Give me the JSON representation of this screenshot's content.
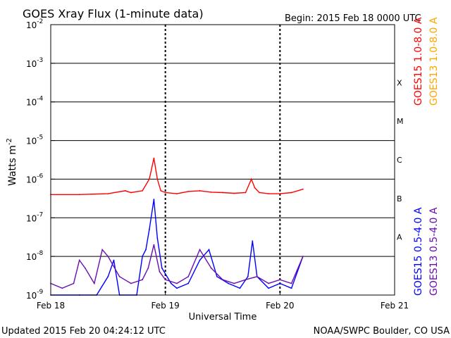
{
  "chart_data": {
    "type": "line",
    "title": "GOES Xray Flux (1-minute data)",
    "begin_label": "Begin:  2015 Feb 18 0000 UTC",
    "xlabel": "Universal Time",
    "ylabel_main": "Watts m",
    "ylabel_exp": "-2",
    "x_ticks": [
      "Feb 18",
      "Feb 19",
      "Feb 20",
      "Feb 21"
    ],
    "xlim_days": [
      0,
      3
    ],
    "y_scale": "log",
    "ylim": [
      1e-09,
      0.01
    ],
    "y_ticks": [
      {
        "mant": "10",
        "exp": "-9"
      },
      {
        "mant": "10",
        "exp": "-8"
      },
      {
        "mant": "10",
        "exp": "-7"
      },
      {
        "mant": "10",
        "exp": "-6"
      },
      {
        "mant": "10",
        "exp": "-5"
      },
      {
        "mant": "10",
        "exp": "-4"
      },
      {
        "mant": "10",
        "exp": "-3"
      },
      {
        "mant": "10",
        "exp": "-2"
      }
    ],
    "flare_classes": [
      "A",
      "B",
      "C",
      "M",
      "X"
    ],
    "grid": true,
    "legend_placement": "right",
    "series": [
      {
        "name": "GOES15 1.0-8.0 A",
        "color": "#ff0000",
        "x": [
          0,
          0.25,
          0.5,
          0.65,
          0.7,
          0.8,
          0.86,
          0.9,
          0.93,
          0.96,
          1.0,
          1.1,
          1.2,
          1.3,
          1.4,
          1.5,
          1.6,
          1.7,
          1.75,
          1.78,
          1.82,
          1.9,
          2.0,
          2.1,
          2.2
        ],
        "values": [
          4e-07,
          4e-07,
          4.2e-07,
          5e-07,
          4.5e-07,
          5e-07,
          1e-06,
          3.5e-06,
          1e-06,
          5e-07,
          4.5e-07,
          4.2e-07,
          4.8e-07,
          5e-07,
          4.6e-07,
          4.5e-07,
          4.3e-07,
          4.5e-07,
          1e-06,
          6e-07,
          4.5e-07,
          4.2e-07,
          4.2e-07,
          4.5e-07,
          5.5e-07
        ]
      },
      {
        "name": "GOES13 1.0-8.0 A",
        "color": "#ffa500",
        "x": [],
        "values": []
      },
      {
        "name": "GOES15 0.5-4.0 A",
        "color": "#0000ff",
        "x": [
          0,
          0.25,
          0.4,
          0.5,
          0.55,
          0.6,
          0.75,
          0.8,
          0.83,
          0.86,
          0.9,
          0.93,
          0.97,
          1.05,
          1.1,
          1.2,
          1.3,
          1.38,
          1.45,
          1.55,
          1.65,
          1.72,
          1.76,
          1.8,
          1.9,
          2.0,
          2.1,
          2.2
        ],
        "values": [
          1e-09,
          1e-09,
          1e-09,
          3e-09,
          8e-09,
          1e-09,
          1e-09,
          1e-08,
          1.5e-08,
          5e-08,
          3e-07,
          3e-08,
          5e-09,
          2e-09,
          1.5e-09,
          2e-09,
          8e-09,
          1.5e-08,
          3e-09,
          2e-09,
          1.5e-09,
          3e-09,
          2.5e-08,
          3e-09,
          1.5e-09,
          2e-09,
          1.5e-09,
          1e-08
        ]
      },
      {
        "name": "GOES13 0.5-4.0 A",
        "color": "#6a0dad",
        "x": [
          0,
          0.1,
          0.2,
          0.25,
          0.3,
          0.38,
          0.45,
          0.5,
          0.6,
          0.7,
          0.8,
          0.85,
          0.9,
          0.95,
          1.0,
          1.1,
          1.2,
          1.3,
          1.4,
          1.5,
          1.6,
          1.7,
          1.8,
          1.9,
          2.0,
          2.1,
          2.2
        ],
        "values": [
          2e-09,
          1.5e-09,
          2e-09,
          8e-09,
          5e-09,
          2e-09,
          1.5e-08,
          1e-08,
          3e-09,
          2e-09,
          2.5e-09,
          5e-09,
          2e-08,
          4e-09,
          2.5e-09,
          2e-09,
          3e-09,
          1.5e-08,
          5e-09,
          2.5e-09,
          2e-09,
          2.5e-09,
          3e-09,
          2e-09,
          2.5e-09,
          2e-09,
          1e-08
        ]
      }
    ]
  },
  "footer": {
    "updated": "Updated 2015 Feb 20 04:24:12 UTC",
    "credit": "NOAA/SWPC Boulder, CO USA"
  }
}
